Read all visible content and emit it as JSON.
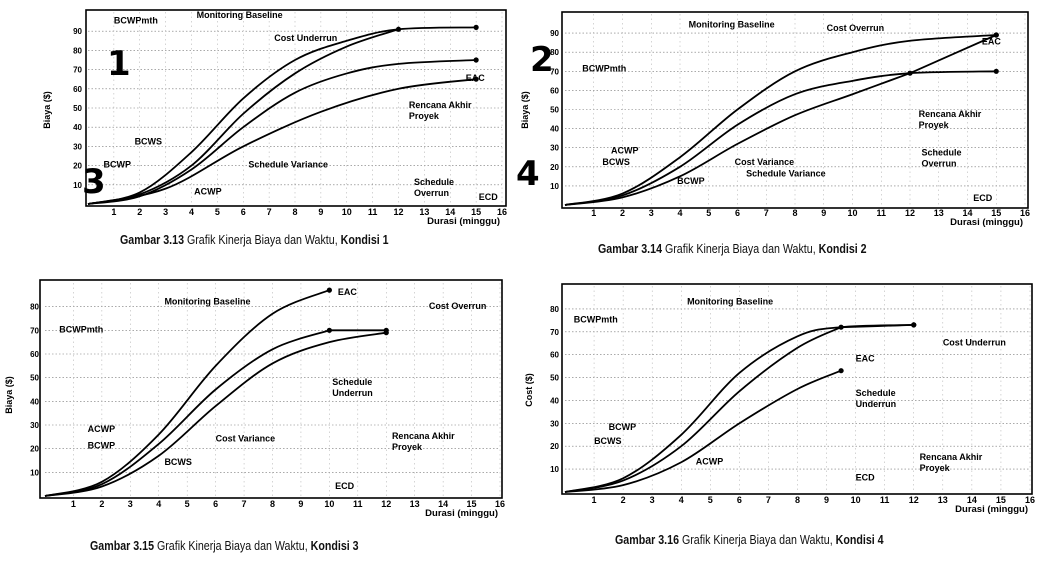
{
  "chart_data": [
    {
      "type": "line",
      "caption": {
        "label": "Gambar 3.13",
        "text": "Grafik Kinerja Biaya dan Waktu,",
        "cond": "Kondisi 1"
      },
      "corner_number": "1",
      "corner_number_2": "3",
      "xlabel": "Durasi (minggu)",
      "ylabel": "Biaya ($)",
      "xticks": [
        "1",
        "2",
        "3",
        "4",
        "5",
        "6",
        "7",
        "8",
        "9",
        "10",
        "11",
        "12",
        "13",
        "14",
        "15",
        "16"
      ],
      "yticks": [
        "10",
        "20",
        "30",
        "40",
        "50",
        "60",
        "70",
        "80",
        "90"
      ],
      "ylim": [
        0,
        100
      ],
      "xlim": [
        0,
        16
      ],
      "series": [
        {
          "name": "BCWS",
          "points": [
            [
              0,
              0
            ],
            [
              2,
              6
            ],
            [
              4,
              27
            ],
            [
              6,
              55
            ],
            [
              8,
              75
            ],
            [
              10,
              85
            ],
            [
              12,
              91
            ],
            [
              15,
              92
            ]
          ]
        },
        {
          "name": "ACWP",
          "points": [
            [
              0,
              0
            ],
            [
              2,
              4
            ],
            [
              4,
              18
            ],
            [
              6,
              40
            ],
            [
              8,
              58
            ],
            [
              10,
              68
            ],
            [
              12,
              73
            ],
            [
              15,
              75
            ]
          ]
        },
        {
          "name": "BCWP",
          "points": [
            [
              0,
              0
            ],
            [
              2,
              5
            ],
            [
              4,
              20
            ],
            [
              6,
              47
            ],
            [
              8,
              68
            ],
            [
              10,
              82
            ],
            [
              12,
              91
            ]
          ]
        },
        {
          "name": "EAC",
          "points": [
            [
              0,
              0
            ],
            [
              3,
              8
            ],
            [
              6,
              30
            ],
            [
              9,
              48
            ],
            [
              12,
              60
            ],
            [
              15,
              65
            ]
          ]
        }
      ],
      "annotations": [
        {
          "text": "BCWPmth",
          "x": 1.0,
          "y": 94
        },
        {
          "text": "Monitoring Baseline",
          "x": 4.2,
          "y": 97
        },
        {
          "text": "Cost Underrun",
          "x": 7.2,
          "y": 85
        },
        {
          "text": "EAC",
          "x": 14.6,
          "y": 64
        },
        {
          "text": "Rencana Akhir Proyek",
          "x": 12.4,
          "y": 50
        },
        {
          "text": "BCWS",
          "x": 1.8,
          "y": 31
        },
        {
          "text": "Schedule Variance",
          "x": 6.2,
          "y": 19
        },
        {
          "text": "BCWP",
          "x": 0.6,
          "y": 19
        },
        {
          "text": "ACWP",
          "x": 4.1,
          "y": 5
        },
        {
          "text": "Schedule Overrun",
          "x": 12.6,
          "y": 10
        },
        {
          "text": "ECD",
          "x": 15.1,
          "y": 2
        }
      ]
    },
    {
      "type": "line",
      "caption": {
        "label": "Gambar 3.14",
        "text": "Grafik Kinerja Biaya dan Waktu,",
        "cond": "Kondisi 2"
      },
      "corner_number": "2",
      "corner_number_2": "4",
      "xlabel": "Durasi (minggu)",
      "ylabel": "Biaya ($)",
      "xticks": [
        "1",
        "2",
        "3",
        "4",
        "5",
        "6",
        "7",
        "8",
        "9",
        "10",
        "11",
        "12",
        "13",
        "14",
        "15",
        "16"
      ],
      "yticks": [
        "10",
        "20",
        "30",
        "40",
        "50",
        "60",
        "70",
        "80",
        "90"
      ],
      "ylim": [
        0,
        100
      ],
      "xlim": [
        0,
        16
      ],
      "series": [
        {
          "name": "ACWP",
          "points": [
            [
              0,
              0
            ],
            [
              2,
              6
            ],
            [
              4,
              25
            ],
            [
              6,
              50
            ],
            [
              8,
              70
            ],
            [
              10,
              80
            ],
            [
              12,
              86
            ],
            [
              15,
              89
            ]
          ]
        },
        {
          "name": "BCWS",
          "points": [
            [
              0,
              0
            ],
            [
              2,
              5
            ],
            [
              4,
              20
            ],
            [
              6,
              42
            ],
            [
              8,
              58
            ],
            [
              10,
              65
            ],
            [
              12,
              69
            ],
            [
              15,
              70
            ]
          ]
        },
        {
          "name": "BCWP",
          "points": [
            [
              0,
              0
            ],
            [
              2,
              4
            ],
            [
              4,
              15
            ],
            [
              6,
              32
            ],
            [
              8,
              47
            ],
            [
              10,
              58
            ],
            [
              12,
              69
            ]
          ]
        },
        {
          "name": "EAC",
          "points": [
            [
              12,
              69
            ],
            [
              15,
              89
            ]
          ]
        }
      ],
      "annotations": [
        {
          "text": "Monitoring Baseline",
          "x": 4.3,
          "y": 93
        },
        {
          "text": "Cost Overrun",
          "x": 9.1,
          "y": 91
        },
        {
          "text": "EAC",
          "x": 14.5,
          "y": 84
        },
        {
          "text": "BCWPmth",
          "x": 0.6,
          "y": 70
        },
        {
          "text": "Rencana Akhir Proyek",
          "x": 12.3,
          "y": 46
        },
        {
          "text": "ACWP",
          "x": 1.6,
          "y": 27
        },
        {
          "text": "Cost Variance",
          "x": 5.9,
          "y": 21
        },
        {
          "text": "Schedule Overrun",
          "x": 12.4,
          "y": 26
        },
        {
          "text": "BCWS",
          "x": 1.3,
          "y": 21
        },
        {
          "text": "Schedule Variance",
          "x": 6.3,
          "y": 15
        },
        {
          "text": "BCWP",
          "x": 3.9,
          "y": 11
        },
        {
          "text": "ECD",
          "x": 14.2,
          "y": 2
        }
      ]
    },
    {
      "type": "line",
      "caption": {
        "label": "Gambar 3.15",
        "text": "Grafik Kinerja Biaya dan Waktu,",
        "cond": "Kondisi 3"
      },
      "xlabel": "Durasi (minggu)",
      "ylabel": "Biaya ($)",
      "xticks": [
        "1",
        "2",
        "3",
        "4",
        "5",
        "6",
        "7",
        "8",
        "9",
        "10",
        "11",
        "12",
        "13",
        "14",
        "15",
        "16"
      ],
      "yticks": [
        "10",
        "20",
        "30",
        "40",
        "50",
        "60",
        "70",
        "80"
      ],
      "ylim": [
        0,
        90
      ],
      "xlim": [
        0,
        16
      ],
      "series": [
        {
          "name": "ACWP",
          "points": [
            [
              0,
              0
            ],
            [
              2,
              6
            ],
            [
              4,
              26
            ],
            [
              6,
              55
            ],
            [
              8,
              77
            ],
            [
              10,
              87
            ]
          ]
        },
        {
          "name": "BCWP",
          "points": [
            [
              0,
              0
            ],
            [
              2,
              5
            ],
            [
              4,
              22
            ],
            [
              6,
              45
            ],
            [
              8,
              62
            ],
            [
              10,
              70
            ]
          ]
        },
        {
          "name": "BCWS",
          "points": [
            [
              0,
              0
            ],
            [
              2,
              4
            ],
            [
              4,
              17
            ],
            [
              6,
              38
            ],
            [
              8,
              56
            ],
            [
              10,
              65
            ],
            [
              12,
              69
            ]
          ]
        },
        {
          "name": "EAC",
          "points": [
            [
              10,
              70
            ],
            [
              12,
              70
            ]
          ]
        }
      ],
      "annotations": [
        {
          "text": "Monitoring Baseline",
          "x": 4.2,
          "y": 81
        },
        {
          "text": "EAC",
          "x": 10.3,
          "y": 85
        },
        {
          "text": "Cost Overrun",
          "x": 13.5,
          "y": 79
        },
        {
          "text": "BCWPmth",
          "x": 0.5,
          "y": 69
        },
        {
          "text": "Schedule Underrun",
          "x": 10.1,
          "y": 47
        },
        {
          "text": "ACWP",
          "x": 1.5,
          "y": 27
        },
        {
          "text": "Cost Variance",
          "x": 6.0,
          "y": 23
        },
        {
          "text": "BCWP",
          "x": 1.5,
          "y": 20
        },
        {
          "text": "BCWS",
          "x": 4.2,
          "y": 13
        },
        {
          "text": "Rencana Akhir Proyek",
          "x": 12.2,
          "y": 24
        },
        {
          "text": "ECD",
          "x": 10.2,
          "y": 3
        }
      ]
    },
    {
      "type": "line",
      "caption": {
        "label": "Gambar 3.16",
        "text": "Grafik Kinerja Biaya dan Waktu,",
        "cond": "Kondisi 4"
      },
      "xlabel": "Durasi (minggu)",
      "ylabel": "Cost ($)",
      "xticks": [
        "1",
        "2",
        "3",
        "4",
        "5",
        "6",
        "7",
        "8",
        "9",
        "10",
        "11",
        "12",
        "13",
        "14",
        "15",
        "16"
      ],
      "yticks": [
        "10",
        "20",
        "30",
        "40",
        "50",
        "60",
        "70",
        "80"
      ],
      "ylim": [
        0,
        90
      ],
      "xlim": [
        0,
        16
      ],
      "series": [
        {
          "name": "BCWP",
          "points": [
            [
              0,
              0
            ],
            [
              2,
              6
            ],
            [
              4,
              25
            ],
            [
              6,
              52
            ],
            [
              8,
              68
            ],
            [
              9.5,
              72
            ],
            [
              12,
              73
            ]
          ]
        },
        {
          "name": "BCWS",
          "points": [
            [
              0,
              0
            ],
            [
              2,
              5
            ],
            [
              4,
              20
            ],
            [
              6,
              44
            ],
            [
              8,
              63
            ],
            [
              9.5,
              72
            ]
          ]
        },
        {
          "name": "ACWP",
          "points": [
            [
              0,
              0
            ],
            [
              2,
              3
            ],
            [
              4,
              13
            ],
            [
              6,
              30
            ],
            [
              8,
              45
            ],
            [
              9.5,
              53
            ]
          ]
        },
        {
          "name": "EAC",
          "points": [
            [
              9.5,
              72
            ],
            [
              12,
              73
            ]
          ]
        }
      ],
      "annotations": [
        {
          "text": "Monitoring Baseline",
          "x": 4.2,
          "y": 82
        },
        {
          "text": "BCWPmth",
          "x": 0.3,
          "y": 74
        },
        {
          "text": "Cost Underrun",
          "x": 13.0,
          "y": 64
        },
        {
          "text": "EAC",
          "x": 10.0,
          "y": 57
        },
        {
          "text": "Schedule Underrun",
          "x": 10.0,
          "y": 42
        },
        {
          "text": "BCWP",
          "x": 1.5,
          "y": 27
        },
        {
          "text": "BCWS",
          "x": 1.0,
          "y": 21
        },
        {
          "text": "ACWP",
          "x": 4.5,
          "y": 12
        },
        {
          "text": "ECD",
          "x": 10.0,
          "y": 5
        },
        {
          "text": "Rencana Akhir Proyek",
          "x": 12.2,
          "y": 14
        }
      ]
    }
  ]
}
